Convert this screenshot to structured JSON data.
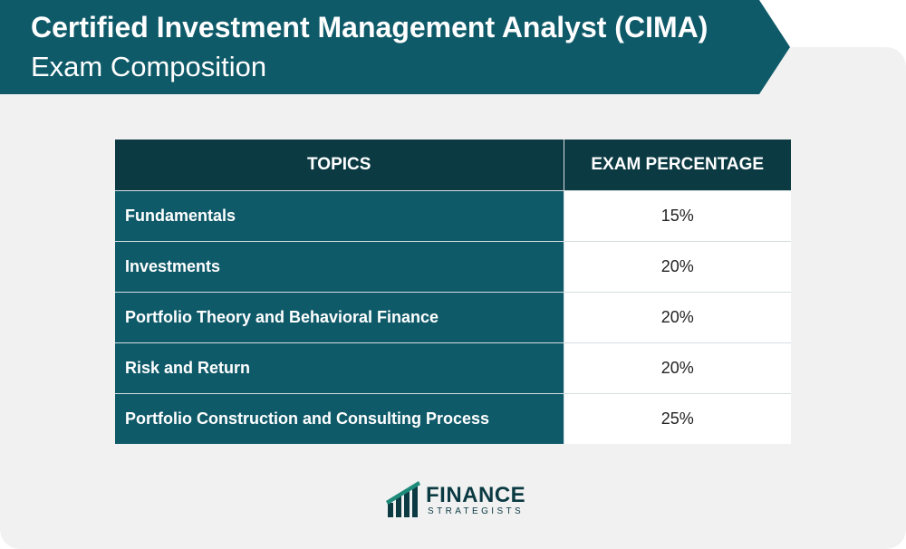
{
  "title": {
    "line1": "Certified Investment Management Analyst (CIMA)",
    "line2": "Exam Composition"
  },
  "table": {
    "headers": [
      "TOPICS",
      "EXAM PERCENTAGE"
    ],
    "rows": [
      {
        "topic": "Fundamentals",
        "percentage": "15%"
      },
      {
        "topic": "Investments",
        "percentage": "20%"
      },
      {
        "topic": "Portfolio Theory and Behavioral Finance",
        "percentage": "20%"
      },
      {
        "topic": "Risk and Return",
        "percentage": "20%"
      },
      {
        "topic": "Portfolio Construction and Consulting Process",
        "percentage": "25%"
      }
    ]
  },
  "logo": {
    "name": "FINANCE",
    "subtitle": "STRATEGISTS",
    "icon": "finance-strategists-logo-icon"
  },
  "colors": {
    "banner": "#0f5a69",
    "header": "#0b3a43",
    "topic_cell": "#0f5a69",
    "background": "#f1f1f1"
  }
}
